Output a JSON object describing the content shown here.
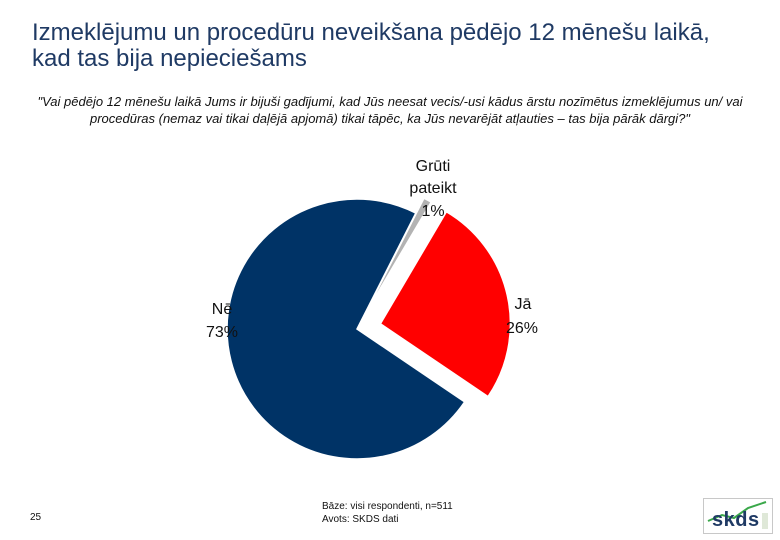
{
  "title": "Izmeklējumu un procedūru neveikšana pēdējo 12 mēnešu laikā, kad tas bija nepieciešams",
  "subtitle": "\"Vai pēdējo 12 mēnešu laikā Jums ir bijuši gadījumi, kad Jūs neesat vecis/-usi kādus ārstu nozīmētus izmeklējumus un/ vai procedūras (nemaz vai tikai daļējā apjomā) tikai tāpēc, ka Jūs nevarējāt atļauties – tas bija pārāk dārgi?\"",
  "page_number": "25",
  "footer": {
    "base": "Bāze: visi respondenti, n=511",
    "source": "Avots: SKDS dati"
  },
  "logo_text": "skds",
  "colors": {
    "ne": "#003366",
    "ja": "#ff0000",
    "gruti": "#b3b3b3",
    "title": "#1f3a64"
  },
  "chart_data": {
    "type": "pie",
    "title": "",
    "slices": [
      {
        "label": "Jā",
        "value": 26,
        "value_label": "26%",
        "color": "#ff0000"
      },
      {
        "label": "Nē",
        "value": 73,
        "value_label": "73%",
        "color": "#003366"
      },
      {
        "label": "Grūti pateikt",
        "value": 1,
        "value_label": "1%",
        "color": "#b3b3b3"
      }
    ],
    "exploded": [
      "Jā",
      "Grūti pateikt"
    ],
    "legend": "none"
  }
}
